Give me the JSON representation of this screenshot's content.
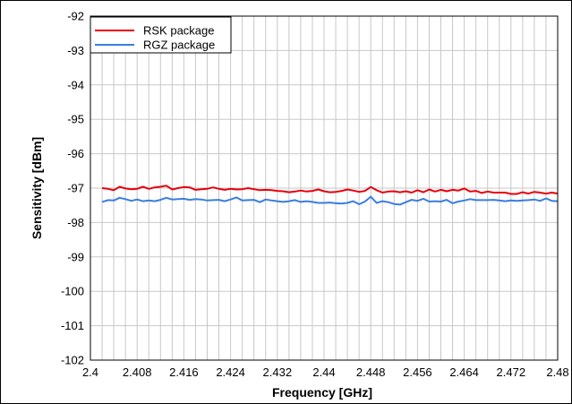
{
  "chart_data": {
    "type": "line",
    "title": "",
    "xlabel": "Frequency [GHz]",
    "ylabel": "Sensitivity [dBm]",
    "xlim": [
      2.4,
      2.48
    ],
    "ylim": [
      -102,
      -92
    ],
    "xticks": [
      2.4,
      2.408,
      2.416,
      2.424,
      2.432,
      2.44,
      2.448,
      2.456,
      2.464,
      2.472,
      2.48
    ],
    "xtick_labels": [
      "2.4",
      "2.408",
      "2.416",
      "2.424",
      "2.432",
      "2.44",
      "2.448",
      "2.456",
      "2.464",
      "2.472",
      "2.48"
    ],
    "yticks": [
      -92,
      -93,
      -94,
      -95,
      -96,
      -97,
      -98,
      -99,
      -100,
      -101,
      -102
    ],
    "ytick_labels": [
      "-92",
      "-93",
      "-94",
      "-95",
      "-96",
      "-97",
      "-98",
      "-99",
      "-100",
      "-101",
      "-102"
    ],
    "grid": true,
    "legend_position": "top-left",
    "x": [
      2.402,
      2.403,
      2.404,
      2.405,
      2.406,
      2.407,
      2.408,
      2.409,
      2.41,
      2.411,
      2.412,
      2.413,
      2.414,
      2.415,
      2.416,
      2.417,
      2.418,
      2.419,
      2.42,
      2.421,
      2.422,
      2.423,
      2.424,
      2.425,
      2.426,
      2.427,
      2.428,
      2.429,
      2.43,
      2.431,
      2.432,
      2.433,
      2.434,
      2.435,
      2.436,
      2.437,
      2.438,
      2.439,
      2.44,
      2.441,
      2.442,
      2.443,
      2.444,
      2.445,
      2.446,
      2.447,
      2.448,
      2.449,
      2.45,
      2.451,
      2.452,
      2.453,
      2.454,
      2.455,
      2.456,
      2.457,
      2.458,
      2.459,
      2.46,
      2.461,
      2.462,
      2.463,
      2.464,
      2.465,
      2.466,
      2.467,
      2.468,
      2.469,
      2.47,
      2.471,
      2.472,
      2.473,
      2.474,
      2.475,
      2.476,
      2.477,
      2.478,
      2.479,
      2.48
    ],
    "series": [
      {
        "name": "RSK package",
        "color": "#e8000b",
        "values": [
          -97.0,
          -97.02,
          -97.06,
          -96.96,
          -97.01,
          -97.03,
          -97.02,
          -96.96,
          -97.02,
          -96.98,
          -96.96,
          -96.93,
          -97.04,
          -97.0,
          -96.97,
          -96.98,
          -97.05,
          -97.03,
          -97.02,
          -96.98,
          -97.02,
          -97.05,
          -97.02,
          -97.04,
          -97.03,
          -97.0,
          -97.03,
          -97.06,
          -97.05,
          -97.06,
          -97.08,
          -97.09,
          -97.12,
          -97.1,
          -97.07,
          -97.1,
          -97.08,
          -97.04,
          -97.09,
          -97.12,
          -97.11,
          -97.08,
          -97.04,
          -97.07,
          -97.11,
          -97.08,
          -96.97,
          -97.06,
          -97.13,
          -97.1,
          -97.09,
          -97.12,
          -97.09,
          -97.13,
          -97.06,
          -97.12,
          -97.04,
          -97.1,
          -97.05,
          -97.09,
          -97.05,
          -97.07,
          -97.01,
          -97.1,
          -97.08,
          -97.14,
          -97.1,
          -97.13,
          -97.13,
          -97.13,
          -97.17,
          -97.17,
          -97.12,
          -97.16,
          -97.11,
          -97.13,
          -97.16,
          -97.13,
          -97.16
        ]
      },
      {
        "name": "RGZ package",
        "color": "#3a7de0",
        "values": [
          -97.4,
          -97.35,
          -97.36,
          -97.28,
          -97.32,
          -97.37,
          -97.33,
          -97.38,
          -97.36,
          -97.38,
          -97.34,
          -97.28,
          -97.33,
          -97.32,
          -97.31,
          -97.34,
          -97.32,
          -97.33,
          -97.36,
          -97.35,
          -97.34,
          -97.38,
          -97.33,
          -97.27,
          -97.36,
          -97.35,
          -97.34,
          -97.41,
          -97.33,
          -97.36,
          -97.38,
          -97.4,
          -97.38,
          -97.35,
          -97.4,
          -97.38,
          -97.4,
          -97.43,
          -97.43,
          -97.42,
          -97.44,
          -97.45,
          -97.43,
          -97.38,
          -97.47,
          -97.39,
          -97.25,
          -97.43,
          -97.38,
          -97.41,
          -97.46,
          -97.48,
          -97.41,
          -97.34,
          -97.37,
          -97.31,
          -97.39,
          -97.38,
          -97.39,
          -97.34,
          -97.44,
          -97.39,
          -97.36,
          -97.32,
          -97.35,
          -97.35,
          -97.35,
          -97.34,
          -97.36,
          -97.38,
          -97.36,
          -97.37,
          -97.36,
          -97.35,
          -97.33,
          -97.37,
          -97.3,
          -97.37,
          -97.38
        ]
      }
    ]
  }
}
